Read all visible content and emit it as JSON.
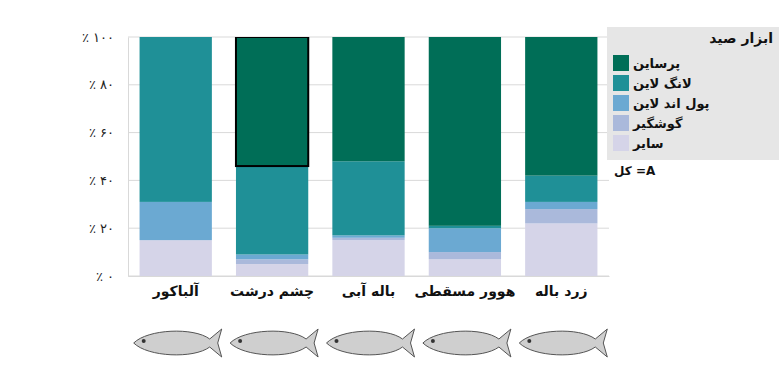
{
  "chart_data": {
    "type": "bar",
    "stacked": true,
    "grid": true,
    "legend": "right",
    "legend_title": "ابزار صید",
    "annotations": [
      "کل =A"
    ],
    "categories": [
      "آلباکور",
      "چشم درشت",
      "باله آبی",
      "هوور مسقطی",
      "زرد باله"
    ],
    "ylim": [
      0,
      100
    ],
    "yticks": [
      {
        "value": 0,
        "label": "٪ ۰"
      },
      {
        "value": 20,
        "label": "٪ ۲۰"
      },
      {
        "value": 40,
        "label": "٪ ۴۰"
      },
      {
        "value": 60,
        "label": "٪ ۶۰"
      },
      {
        "value": 80,
        "label": "٪ ۸۰"
      },
      {
        "value": 100,
        "label": "٪ ۱۰۰"
      }
    ],
    "series": [
      {
        "name": "سایر",
        "color": "#d5d4e8",
        "values": [
          15,
          5,
          15,
          7,
          22
        ]
      },
      {
        "name": "گوشگیر",
        "color": "#aab9db",
        "values": [
          0,
          2,
          1,
          3,
          6
        ]
      },
      {
        "name": "پول اند لاین",
        "color": "#6ba9d2",
        "values": [
          16,
          2,
          1,
          10,
          3
        ]
      },
      {
        "name": "لانگ لاین",
        "color": "#1f9097",
        "values": [
          69,
          37,
          31,
          1,
          11
        ]
      },
      {
        "name": "پرساین",
        "color": "#006e57",
        "values": [
          0,
          54,
          52,
          79,
          58
        ]
      }
    ]
  }
}
